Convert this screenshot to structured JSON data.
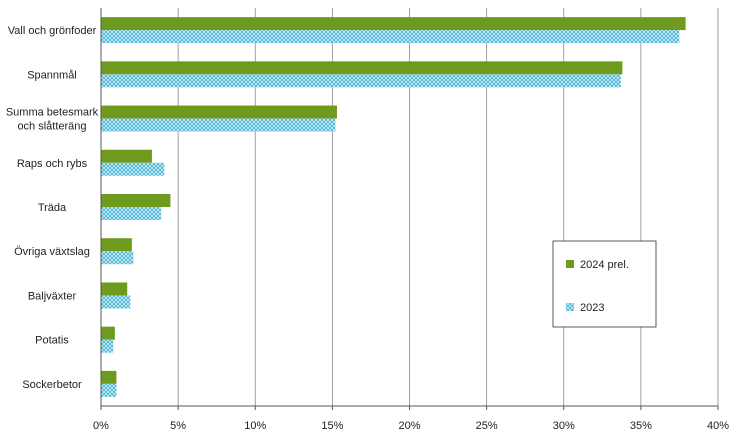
{
  "chart_data": {
    "type": "bar",
    "orientation": "horizontal",
    "categories": [
      "Vall och grönfoder",
      "Spannmål",
      "Summa betesmark och slåtteräng",
      "Raps och rybs",
      "Träda",
      "Övriga växtslag",
      "Baljväxter",
      "Potatis",
      "Sockerbetor"
    ],
    "category_lines": [
      [
        "Vall och grönfoder"
      ],
      [
        "Spannmål"
      ],
      [
        "Summa betesmark",
        "och slåtteräng"
      ],
      [
        "Raps och rybs"
      ],
      [
        "Träda"
      ],
      [
        "Övriga växtslag"
      ],
      [
        "Baljväxter"
      ],
      [
        "Potatis"
      ],
      [
        "Sockerbetor"
      ]
    ],
    "series": [
      {
        "name": "2024 prel.",
        "color": "#6e9a1e",
        "pattern": "solid",
        "values": [
          37.9,
          33.8,
          15.3,
          3.3,
          4.5,
          2.0,
          1.7,
          0.9,
          1.0
        ]
      },
      {
        "name": "2023",
        "color": "#45b3d6",
        "pattern": "crosshatch",
        "values": [
          37.5,
          33.7,
          15.2,
          4.1,
          3.9,
          2.1,
          1.9,
          0.8,
          1.0
        ]
      }
    ],
    "xlim": [
      0,
      40
    ],
    "xticks": [
      0,
      5,
      10,
      15,
      20,
      25,
      30,
      35,
      40
    ],
    "tick_labels": [
      "0%",
      "5%",
      "10%",
      "15%",
      "20%",
      "25%",
      "30%",
      "35%",
      "40%"
    ],
    "grid": "vertical",
    "legend_position": "right, boxed"
  }
}
